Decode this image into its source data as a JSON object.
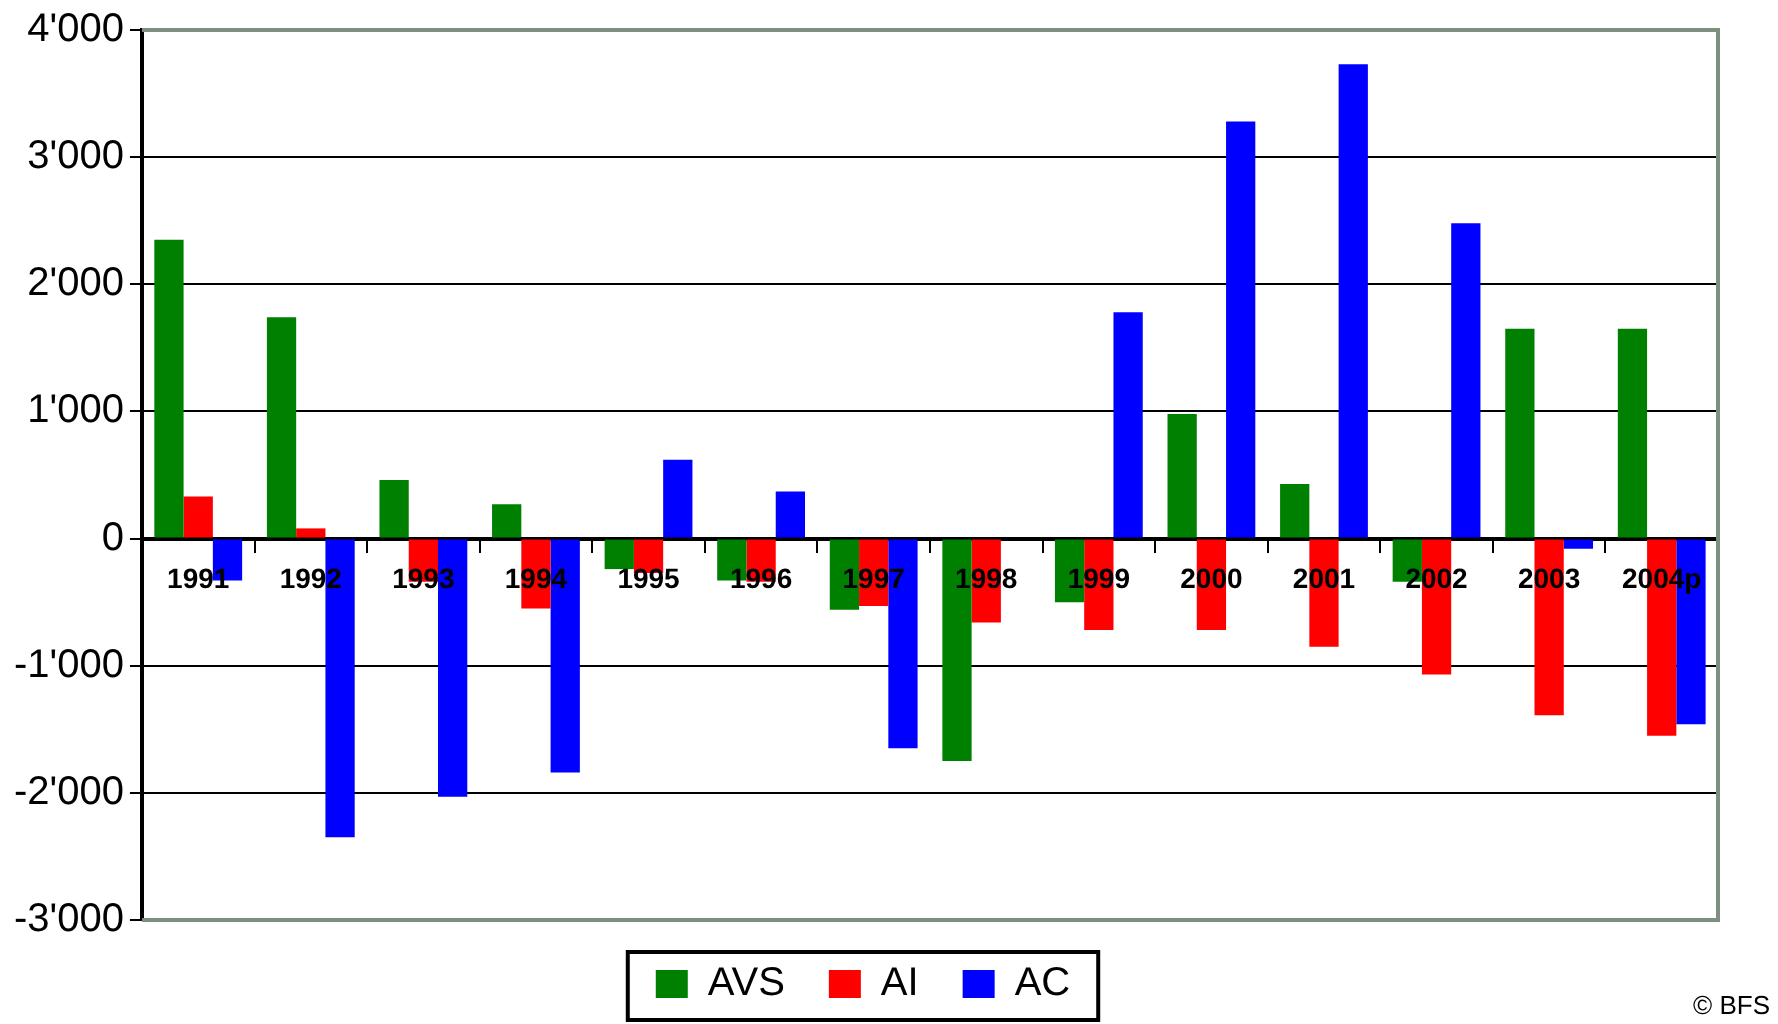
{
  "chart_data": {
    "type": "bar",
    "categories": [
      "1991",
      "1992",
      "1993",
      "1994",
      "1995",
      "1996",
      "1997",
      "1998",
      "1999",
      "2000",
      "2001",
      "2002",
      "2003",
      "2004p"
    ],
    "series": [
      {
        "name": "AVS",
        "color": "#008000",
        "values": [
          2350,
          1740,
          460,
          270,
          -240,
          -330,
          -560,
          -1750,
          -500,
          980,
          430,
          -340,
          1650,
          1650
        ]
      },
      {
        "name": "AI",
        "color": "#ff0000",
        "values": [
          330,
          80,
          -340,
          -550,
          -270,
          -340,
          -530,
          -660,
          -720,
          -720,
          -850,
          -1070,
          -1390,
          -1550
        ]
      },
      {
        "name": "AC",
        "color": "#0000ff",
        "values": [
          -330,
          -2350,
          -2030,
          -1840,
          620,
          370,
          -1650,
          0,
          1780,
          3280,
          3730,
          2480,
          -80,
          -1460
        ]
      }
    ],
    "ylim": [
      -3000,
      4000
    ],
    "yticks": [
      {
        "value": -3000,
        "label": "-3'000"
      },
      {
        "value": -2000,
        "label": "-2'000"
      },
      {
        "value": -1000,
        "label": "-1'000"
      },
      0,
      {
        "value": 1000,
        "label": "1'000"
      },
      {
        "value": 2000,
        "label": "2'000"
      },
      {
        "value": 3000,
        "label": "3'000"
      },
      {
        "value": 4000,
        "label": "4'000"
      }
    ],
    "grid": "y",
    "legend": "bottom",
    "annotations": [
      "© BFS"
    ]
  }
}
